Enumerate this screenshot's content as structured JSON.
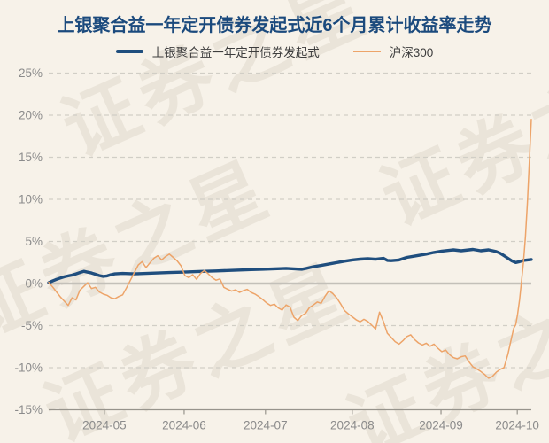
{
  "title": "上银聚合益一年定开债券发起式近6个月累计收益率走势",
  "watermark_text": "证券之星",
  "colors": {
    "background": "#f7f2e9",
    "title": "#1b4a7d",
    "fund_line": "#1f4e7e",
    "index_line": "#eda469",
    "grid": "#d1cec6",
    "zero_line": "#c3c0b9",
    "axis": "#97948c",
    "tick_text": "#8b8b8b",
    "legend_text": "#3d3d3d"
  },
  "chart_data": {
    "type": "line",
    "title": "上银聚合益一年定开债券发起式近6个月累计收益率走势",
    "legend_position": "top",
    "grid": "horizontal-dashed",
    "y_axis": {
      "min": -15,
      "max": 25,
      "step": 5,
      "unit": "%"
    },
    "y_tick_labels": [
      "25%",
      "20%",
      "15%",
      "10%",
      "5%",
      "0%",
      "-5%",
      "-10%",
      "-15%"
    ],
    "x_range_days": [
      0,
      124
    ],
    "x_ticks": [
      {
        "label": "2024-05",
        "day": 14.3
      },
      {
        "label": "2024-06",
        "day": 34.8
      },
      {
        "label": "2024-07",
        "day": 55.7
      },
      {
        "label": "2024-08",
        "day": 78.0
      },
      {
        "label": "2024-09",
        "day": 100.8
      },
      {
        "label": "2024-10",
        "day": 120.4
      }
    ],
    "series": [
      {
        "name": "上银聚合益一年定开债券发起式",
        "color": "#1f4e7e",
        "stroke_width": 3.4,
        "unit": "%",
        "points": [
          [
            0,
            0.1
          ],
          [
            1,
            0.3
          ],
          [
            2,
            0.5
          ],
          [
            3,
            0.65
          ],
          [
            4,
            0.8
          ],
          [
            5,
            0.9
          ],
          [
            6,
            1.0
          ],
          [
            7,
            1.15
          ],
          [
            8,
            1.3
          ],
          [
            9,
            1.45
          ],
          [
            10,
            1.35
          ],
          [
            11,
            1.25
          ],
          [
            12,
            1.1
          ],
          [
            13,
            0.95
          ],
          [
            14,
            0.85
          ],
          [
            15,
            0.9
          ],
          [
            16,
            1.05
          ],
          [
            17,
            1.15
          ],
          [
            19,
            1.2
          ],
          [
            22,
            1.15
          ],
          [
            25,
            1.2
          ],
          [
            28,
            1.25
          ],
          [
            31,
            1.3
          ],
          [
            34,
            1.35
          ],
          [
            37,
            1.4
          ],
          [
            40,
            1.45
          ],
          [
            43,
            1.5
          ],
          [
            46,
            1.55
          ],
          [
            49,
            1.6
          ],
          [
            52,
            1.65
          ],
          [
            55,
            1.7
          ],
          [
            58,
            1.75
          ],
          [
            61,
            1.8
          ],
          [
            63,
            1.75
          ],
          [
            65,
            1.7
          ],
          [
            66,
            1.78
          ],
          [
            68,
            2.0
          ],
          [
            70,
            2.15
          ],
          [
            73,
            2.4
          ],
          [
            76,
            2.65
          ],
          [
            78,
            2.8
          ],
          [
            80,
            2.9
          ],
          [
            82,
            2.95
          ],
          [
            84,
            2.88
          ],
          [
            86,
            3.0
          ],
          [
            87,
            2.75
          ],
          [
            88,
            2.72
          ],
          [
            90,
            2.8
          ],
          [
            92,
            3.1
          ],
          [
            94,
            3.25
          ],
          [
            97,
            3.5
          ],
          [
            99,
            3.7
          ],
          [
            101,
            3.85
          ],
          [
            104,
            4.0
          ],
          [
            106,
            3.9
          ],
          [
            109,
            4.05
          ],
          [
            111,
            3.9
          ],
          [
            113,
            4.0
          ],
          [
            115,
            3.8
          ],
          [
            116,
            3.6
          ],
          [
            117,
            3.3
          ],
          [
            118,
            3.0
          ],
          [
            119,
            2.7
          ],
          [
            120,
            2.5
          ],
          [
            121,
            2.6
          ],
          [
            122,
            2.75
          ],
          [
            124,
            2.85
          ]
        ]
      },
      {
        "name": "沪深300",
        "color": "#eda469",
        "stroke_width": 1.5,
        "unit": "%",
        "points": [
          [
            0,
            0.15
          ],
          [
            1,
            -0.4
          ],
          [
            2,
            -1.0
          ],
          [
            3,
            -1.6
          ],
          [
            4,
            -2.1
          ],
          [
            5,
            -2.6
          ],
          [
            6,
            -1.7
          ],
          [
            7,
            -1.95
          ],
          [
            8,
            -0.8
          ],
          [
            9,
            -0.35
          ],
          [
            10,
            0.1
          ],
          [
            11,
            -0.6
          ],
          [
            12,
            -0.45
          ],
          [
            13,
            -1.0
          ],
          [
            14,
            -1.25
          ],
          [
            15,
            -1.4
          ],
          [
            16,
            -1.7
          ],
          [
            17,
            -1.8
          ],
          [
            18,
            -1.55
          ],
          [
            19,
            -1.35
          ],
          [
            20,
            -0.5
          ],
          [
            21,
            0.4
          ],
          [
            22,
            1.3
          ],
          [
            23,
            2.2
          ],
          [
            24,
            2.6
          ],
          [
            25,
            1.9
          ],
          [
            26,
            2.45
          ],
          [
            27,
            3.0
          ],
          [
            28,
            3.3
          ],
          [
            29,
            2.8
          ],
          [
            30,
            3.2
          ],
          [
            31,
            3.5
          ],
          [
            32,
            3.1
          ],
          [
            33,
            2.7
          ],
          [
            34,
            2.1
          ],
          [
            35,
            0.95
          ],
          [
            36,
            0.7
          ],
          [
            37,
            1.05
          ],
          [
            38,
            0.5
          ],
          [
            39,
            1.2
          ],
          [
            40,
            1.55
          ],
          [
            41,
            1.15
          ],
          [
            42,
            0.7
          ],
          [
            43,
            0.4
          ],
          [
            44,
            0.55
          ],
          [
            45,
            -0.45
          ],
          [
            46,
            -0.7
          ],
          [
            47,
            -0.9
          ],
          [
            48,
            -0.75
          ],
          [
            49,
            -1.05
          ],
          [
            50,
            -0.85
          ],
          [
            51,
            -0.7
          ],
          [
            52,
            -1.05
          ],
          [
            53,
            -1.25
          ],
          [
            54,
            -1.55
          ],
          [
            55,
            -1.9
          ],
          [
            56,
            -2.3
          ],
          [
            57,
            -2.6
          ],
          [
            58,
            -2.45
          ],
          [
            59,
            -2.9
          ],
          [
            60,
            -3.15
          ],
          [
            61,
            -2.55
          ],
          [
            62,
            -2.8
          ],
          [
            63,
            -4.0
          ],
          [
            64,
            -4.4
          ],
          [
            65,
            -3.8
          ],
          [
            66,
            -3.55
          ],
          [
            67,
            -2.85
          ],
          [
            68,
            -2.55
          ],
          [
            69,
            -2.2
          ],
          [
            70,
            -2.35
          ],
          [
            71,
            -1.5
          ],
          [
            72,
            -0.85
          ],
          [
            73,
            -1.2
          ],
          [
            74,
            -1.7
          ],
          [
            75,
            -2.4
          ],
          [
            76,
            -3.2
          ],
          [
            77,
            -3.6
          ],
          [
            78,
            -3.95
          ],
          [
            79,
            -4.3
          ],
          [
            80,
            -4.55
          ],
          [
            81,
            -4.25
          ],
          [
            82,
            -4.5
          ],
          [
            83,
            -4.95
          ],
          [
            84,
            -5.4
          ],
          [
            85,
            -3.4
          ],
          [
            86,
            -4.5
          ],
          [
            87,
            -5.9
          ],
          [
            88,
            -6.4
          ],
          [
            89,
            -6.9
          ],
          [
            90,
            -7.2
          ],
          [
            91,
            -6.8
          ],
          [
            92,
            -6.3
          ],
          [
            93,
            -6.1
          ],
          [
            94,
            -6.65
          ],
          [
            95,
            -7.05
          ],
          [
            96,
            -7.3
          ],
          [
            97,
            -7.1
          ],
          [
            98,
            -7.45
          ],
          [
            99,
            -7.2
          ],
          [
            100,
            -7.7
          ],
          [
            101,
            -8.1
          ],
          [
            102,
            -7.9
          ],
          [
            103,
            -8.45
          ],
          [
            104,
            -8.8
          ],
          [
            105,
            -8.95
          ],
          [
            106,
            -8.7
          ],
          [
            107,
            -8.6
          ],
          [
            108,
            -9.3
          ],
          [
            109,
            -9.9
          ],
          [
            110,
            -10.15
          ],
          [
            111,
            -10.45
          ],
          [
            112,
            -10.8
          ],
          [
            113,
            -11.25
          ],
          [
            114,
            -11.05
          ],
          [
            115,
            -10.55
          ],
          [
            116,
            -10.2
          ],
          [
            117,
            -10.0
          ],
          [
            118,
            -8.4
          ],
          [
            119,
            -6.3
          ],
          [
            119.5,
            -5.3
          ],
          [
            120,
            -4.9
          ],
          [
            120.5,
            -3.6
          ],
          [
            121,
            -1.9
          ],
          [
            121.5,
            0.3
          ],
          [
            122,
            2.6
          ],
          [
            122.5,
            5.6
          ],
          [
            123,
            9.6
          ],
          [
            123.5,
            14.5
          ],
          [
            124,
            19.5
          ]
        ]
      }
    ]
  }
}
